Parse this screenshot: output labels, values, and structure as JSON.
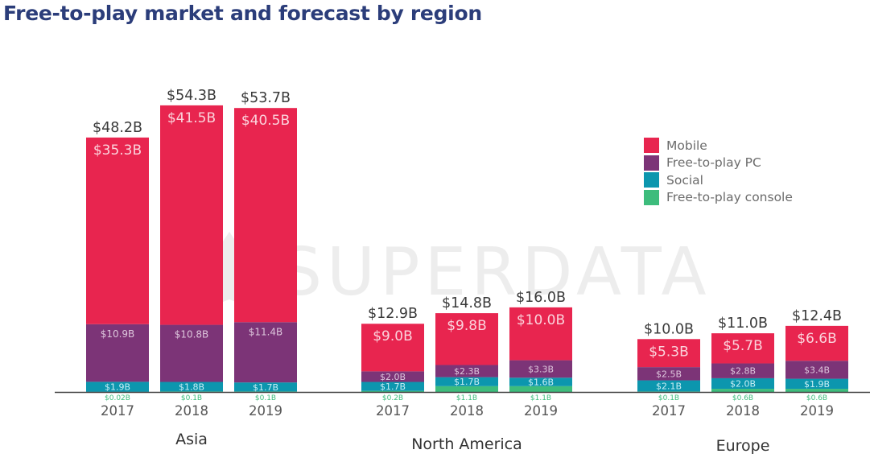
{
  "chart_data": {
    "type": "bar",
    "title": "Free-to-play market and forecast by region",
    "watermark": "SUPERDATA",
    "ylim": [
      0,
      60
    ],
    "grid": false,
    "legend_placement": "top-right",
    "series": [
      {
        "name": "Mobile",
        "color": "#e8254f"
      },
      {
        "name": "Free-to-play PC",
        "color": "#7c3477"
      },
      {
        "name": "Social",
        "color": "#0c96ae"
      },
      {
        "name": "Free-to-play console",
        "color": "#3dbc7c"
      }
    ],
    "groups": [
      {
        "region": "Asia",
        "years": [
          {
            "year": "2017",
            "total": 48.2,
            "total_label": "$48.2B",
            "mobile": 35.3,
            "mobile_label": "$35.3B",
            "pc": 10.9,
            "pc_label": "$10.9B",
            "social": 1.9,
            "social_label": "$1.9B",
            "console": 0.02,
            "console_label": "$0.02B"
          },
          {
            "year": "2018",
            "total": 54.3,
            "total_label": "$54.3B",
            "mobile": 41.5,
            "mobile_label": "$41.5B",
            "pc": 10.8,
            "pc_label": "$10.8B",
            "social": 1.8,
            "social_label": "$1.8B",
            "console": 0.1,
            "console_label": "$0.1B"
          },
          {
            "year": "2019",
            "total": 53.7,
            "total_label": "$53.7B",
            "mobile": 40.5,
            "mobile_label": "$40.5B",
            "pc": 11.4,
            "pc_label": "$11.4B",
            "social": 1.7,
            "social_label": "$1.7B",
            "console": 0.1,
            "console_label": "$0.1B"
          }
        ]
      },
      {
        "region": "North America",
        "years": [
          {
            "year": "2017",
            "total": 12.9,
            "total_label": "$12.9B",
            "mobile": 9.0,
            "mobile_label": "$9.0B",
            "pc": 2.0,
            "pc_label": "$2.0B",
            "social": 1.7,
            "social_label": "$1.7B",
            "console": 0.2,
            "console_label": "$0.2B"
          },
          {
            "year": "2018",
            "total": 14.8,
            "total_label": "$14.8B",
            "mobile": 9.8,
            "mobile_label": "$9.8B",
            "pc": 2.3,
            "pc_label": "$2.3B",
            "social": 1.7,
            "social_label": "$1.7B",
            "console": 1.1,
            "console_label": "$1.1B"
          },
          {
            "year": "2019",
            "total": 16.0,
            "total_label": "$16.0B",
            "mobile": 10.0,
            "mobile_label": "$10.0B",
            "pc": 3.3,
            "pc_label": "$3.3B",
            "social": 1.6,
            "social_label": "$1.6B",
            "console": 1.1,
            "console_label": "$1.1B"
          }
        ]
      },
      {
        "region": "Europe",
        "years": [
          {
            "year": "2017",
            "total": 10.0,
            "total_label": "$10.0B",
            "mobile": 5.3,
            "mobile_label": "$5.3B",
            "pc": 2.5,
            "pc_label": "$2.5B",
            "social": 2.1,
            "social_label": "$2.1B",
            "console": 0.1,
            "console_label": "$0.1B"
          },
          {
            "year": "2018",
            "total": 11.0,
            "total_label": "$11.0B",
            "mobile": 5.7,
            "mobile_label": "$5.7B",
            "pc": 2.8,
            "pc_label": "$2.8B",
            "social": 2.0,
            "social_label": "$2.0B",
            "console": 0.6,
            "console_label": "$0.6B"
          },
          {
            "year": "2019",
            "total": 12.4,
            "total_label": "$12.4B",
            "mobile": 6.6,
            "mobile_label": "$6.6B",
            "pc": 3.4,
            "pc_label": "$3.4B",
            "social": 1.9,
            "social_label": "$1.9B",
            "console": 0.6,
            "console_label": "$0.6B"
          }
        ]
      }
    ]
  }
}
